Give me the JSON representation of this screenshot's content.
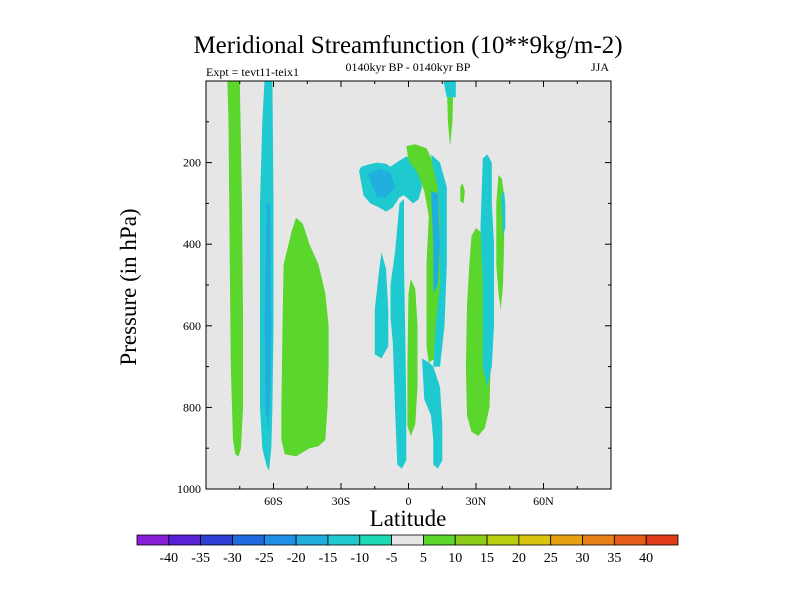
{
  "chart_data": {
    "type": "heatmap",
    "title": "Meridional Streamfunction (10**9kg/m-2)",
    "subtitle_left": "Expt = tevt11-teix1",
    "subtitle_center": "0140kyr BP - 0140kyr BP",
    "subtitle_right": "JJA",
    "xlabel": "Latitude",
    "ylabel": "Pressure (in hPa)",
    "xlim": [
      -90,
      90
    ],
    "ylim": [
      1000,
      0
    ],
    "x_ticks": [
      {
        "value": -60,
        "label": "60S"
      },
      {
        "value": -30,
        "label": "30S"
      },
      {
        "value": 0,
        "label": "0"
      },
      {
        "value": 30,
        "label": "30N"
      },
      {
        "value": 60,
        "label": "60N"
      }
    ],
    "y_ticks": [
      {
        "value": 200,
        "label": "200"
      },
      {
        "value": 400,
        "label": "400"
      },
      {
        "value": 600,
        "label": "600"
      },
      {
        "value": 800,
        "label": "800"
      },
      {
        "value": 1000,
        "label": "1000"
      }
    ],
    "background_color": "#e6e6e6",
    "colorbar": {
      "levels": [
        -40,
        -35,
        -30,
        -25,
        -20,
        -15,
        -10,
        -5,
        5,
        10,
        15,
        20,
        25,
        30,
        35,
        40
      ],
      "colors": [
        "#8a1fd9",
        "#5a20d6",
        "#2f3fd6",
        "#1e6be0",
        "#1f8fe6",
        "#1faede",
        "#1ec9d0",
        "#1bd9b2",
        "#e6e6e6",
        "#5ad62c",
        "#8ccc18",
        "#b8cf10",
        "#d9c410",
        "#e6a010",
        "#e68018",
        "#e65c18",
        "#e03a18"
      ]
    },
    "regions": [
      {
        "label": "positive 5-10",
        "color": "#5ad62c",
        "points": [
          [
            -80.5,
            0
          ],
          [
            -75,
            0
          ],
          [
            -74,
            300
          ],
          [
            -73.5,
            600
          ],
          [
            -73.5,
            800
          ],
          [
            -74.5,
            900
          ],
          [
            -75.5,
            920
          ],
          [
            -77,
            915
          ],
          [
            -78,
            880
          ],
          [
            -79,
            700
          ],
          [
            -79.5,
            400
          ],
          [
            -80,
            100
          ]
        ]
      },
      {
        "label": "negative -5 to -10",
        "color": "#1ec9d0",
        "points": [
          [
            -64,
            0
          ],
          [
            -60.5,
            0
          ],
          [
            -60,
            300
          ],
          [
            -60,
            600
          ],
          [
            -60.5,
            800
          ],
          [
            -61,
            900
          ],
          [
            -62,
            955
          ],
          [
            -63,
            945
          ],
          [
            -65,
            900
          ],
          [
            -66,
            800
          ],
          [
            -66,
            300
          ],
          [
            -65,
            100
          ]
        ]
      },
      {
        "label": "negative -10 to -15",
        "color": "#1faede",
        "points": [
          [
            -63,
            300
          ],
          [
            -61.5,
            300
          ],
          [
            -61,
            600
          ],
          [
            -61.5,
            780
          ],
          [
            -62.5,
            850
          ],
          [
            -63.5,
            800
          ],
          [
            -64,
            600
          ]
        ]
      },
      {
        "label": "positive 5-10",
        "color": "#5ad62c",
        "points": [
          [
            -52,
            370
          ],
          [
            -50,
            335
          ],
          [
            -47,
            350
          ],
          [
            -44,
            400
          ],
          [
            -40,
            450
          ],
          [
            -37,
            520
          ],
          [
            -35.5,
            600
          ],
          [
            -35.5,
            700
          ],
          [
            -36,
            800
          ],
          [
            -37,
            880
          ],
          [
            -40,
            895
          ],
          [
            -44,
            900
          ],
          [
            -50,
            920
          ],
          [
            -55,
            915
          ],
          [
            -56.5,
            880
          ],
          [
            -56.5,
            800
          ],
          [
            -56,
            600
          ],
          [
            -55.5,
            450
          ]
        ]
      },
      {
        "label": "negative -5 to -10",
        "color": "#1ec9d0",
        "points": [
          [
            -22,
            220
          ],
          [
            -21,
            210
          ],
          [
            -18,
            205
          ],
          [
            -14,
            200
          ],
          [
            -10,
            203
          ],
          [
            -8,
            210
          ],
          [
            -4,
            195
          ],
          [
            -1,
            185
          ],
          [
            2,
            190
          ],
          [
            5,
            220
          ],
          [
            6,
            260
          ],
          [
            4.5,
            290
          ],
          [
            2,
            300
          ],
          [
            0,
            290
          ],
          [
            -2,
            280
          ],
          [
            -4,
            285
          ],
          [
            -7,
            310
          ],
          [
            -10,
            320
          ],
          [
            -13,
            310
          ],
          [
            -17,
            300
          ],
          [
            -20,
            280
          ]
        ]
      },
      {
        "label": "negative -10 to -15",
        "color": "#1faede",
        "points": [
          [
            -18,
            230
          ],
          [
            -13,
            215
          ],
          [
            -8,
            225
          ],
          [
            -6,
            260
          ],
          [
            -10,
            285
          ],
          [
            -14,
            285
          ]
        ]
      },
      {
        "label": "positive 5-10",
        "color": "#5ad62c",
        "points": [
          [
            -1,
            160
          ],
          [
            3,
            155
          ],
          [
            8,
            165
          ],
          [
            11,
            200
          ],
          [
            13,
            260
          ],
          [
            15,
            340
          ],
          [
            15,
            500
          ],
          [
            14,
            560
          ],
          [
            13,
            620
          ],
          [
            12,
            680
          ],
          [
            9,
            690
          ],
          [
            8,
            650
          ],
          [
            8,
            450
          ],
          [
            9,
            330
          ],
          [
            7,
            270
          ],
          [
            4,
            225
          ],
          [
            0,
            195
          ]
        ]
      },
      {
        "label": "negative -5 to -10",
        "color": "#1ec9d0",
        "points": [
          [
            10,
            180
          ],
          [
            14,
            200
          ],
          [
            17,
            260
          ],
          [
            17,
            450
          ],
          [
            16,
            600
          ],
          [
            14,
            700
          ],
          [
            11,
            700
          ],
          [
            12,
            600
          ],
          [
            14,
            500
          ],
          [
            14,
            350
          ],
          [
            13,
            260
          ],
          [
            11,
            215
          ]
        ]
      },
      {
        "label": "negative -10 to -15",
        "color": "#1faede",
        "points": [
          [
            10,
            270
          ],
          [
            13,
            275
          ],
          [
            14,
            400
          ],
          [
            13,
            500
          ],
          [
            11,
            520
          ],
          [
            11,
            400
          ]
        ]
      },
      {
        "label": "negative -5 to -10",
        "color": "#1ec9d0",
        "points": [
          [
            -15,
            560
          ],
          [
            -13,
            460
          ],
          [
            -12,
            420
          ],
          [
            -10,
            460
          ],
          [
            -9,
            560
          ],
          [
            -9,
            650
          ],
          [
            -12,
            680
          ],
          [
            -15,
            670
          ]
        ]
      },
      {
        "label": "negative -5 to -10",
        "color": "#1ec9d0",
        "points": [
          [
            -8,
            500
          ],
          [
            -6,
            420
          ],
          [
            -4,
            300
          ],
          [
            -2,
            290
          ],
          [
            -2,
            450
          ],
          [
            -1.5,
            600
          ],
          [
            -1,
            800
          ],
          [
            -1,
            930
          ],
          [
            -3,
            950
          ],
          [
            -5,
            940
          ],
          [
            -6,
            800
          ],
          [
            -7,
            640
          ],
          [
            -8,
            580
          ]
        ]
      },
      {
        "label": "positive 5-10",
        "color": "#5ad62c",
        "points": [
          [
            0,
            520
          ],
          [
            1,
            485
          ],
          [
            3,
            510
          ],
          [
            4,
            600
          ],
          [
            4,
            750
          ],
          [
            3,
            840
          ],
          [
            1,
            870
          ],
          [
            -0.5,
            845
          ],
          [
            -0.5,
            700
          ]
        ]
      },
      {
        "label": "negative -5 to -10",
        "color": "#1ec9d0",
        "points": [
          [
            6,
            680
          ],
          [
            9,
            690
          ],
          [
            11,
            700
          ],
          [
            14,
            750
          ],
          [
            15,
            840
          ],
          [
            15,
            930
          ],
          [
            13,
            950
          ],
          [
            11,
            940
          ],
          [
            11,
            880
          ],
          [
            10,
            820
          ],
          [
            7,
            780
          ]
        ]
      },
      {
        "label": "positive 5-10",
        "color": "#5ad62c",
        "points": [
          [
            17,
            0
          ],
          [
            20,
            0
          ],
          [
            19.5,
            100
          ],
          [
            18.5,
            160
          ],
          [
            17.5,
            100
          ]
        ]
      },
      {
        "label": "negative -5 to -10",
        "color": "#1ec9d0",
        "points": [
          [
            15.5,
            0
          ],
          [
            21,
            0
          ],
          [
            21,
            40
          ],
          [
            17,
            40
          ]
        ]
      },
      {
        "label": "positive 5-10",
        "color": "#5ad62c",
        "points": [
          [
            23,
            260
          ],
          [
            24,
            250
          ],
          [
            25,
            270
          ],
          [
            24.5,
            300
          ],
          [
            23,
            295
          ]
        ]
      },
      {
        "label": "positive 5-10",
        "color": "#5ad62c",
        "points": [
          [
            27,
            450
          ],
          [
            28,
            380
          ],
          [
            30,
            360
          ],
          [
            32,
            370
          ],
          [
            34,
            400
          ],
          [
            35,
            460
          ],
          [
            36,
            540
          ],
          [
            36,
            600
          ],
          [
            36.5,
            700
          ],
          [
            36,
            800
          ],
          [
            34,
            850
          ],
          [
            31,
            870
          ],
          [
            28,
            860
          ],
          [
            26,
            820
          ],
          [
            25.5,
            700
          ],
          [
            26,
            550
          ]
        ]
      },
      {
        "label": "negative -5 to -10",
        "color": "#1ec9d0",
        "points": [
          [
            32,
            360
          ],
          [
            33,
            190
          ],
          [
            35,
            180
          ],
          [
            37,
            200
          ],
          [
            37,
            300
          ],
          [
            38,
            400
          ],
          [
            38,
            600
          ],
          [
            37,
            700
          ],
          [
            35,
            750
          ],
          [
            33,
            700
          ],
          [
            33,
            500
          ]
        ]
      },
      {
        "label": "positive 5-10",
        "color": "#5ad62c",
        "points": [
          [
            39,
            300
          ],
          [
            40,
            230
          ],
          [
            41.5,
            240
          ],
          [
            42.5,
            280
          ],
          [
            42.5,
            400
          ],
          [
            42,
            500
          ],
          [
            41,
            560
          ],
          [
            40,
            520
          ],
          [
            39,
            450
          ]
        ]
      },
      {
        "label": "negative -5 to -10",
        "color": "#1ec9d0",
        "points": [
          [
            41,
            280
          ],
          [
            42.5,
            270
          ],
          [
            43,
            300
          ],
          [
            43,
            360
          ],
          [
            42,
            380
          ]
        ]
      }
    ]
  }
}
